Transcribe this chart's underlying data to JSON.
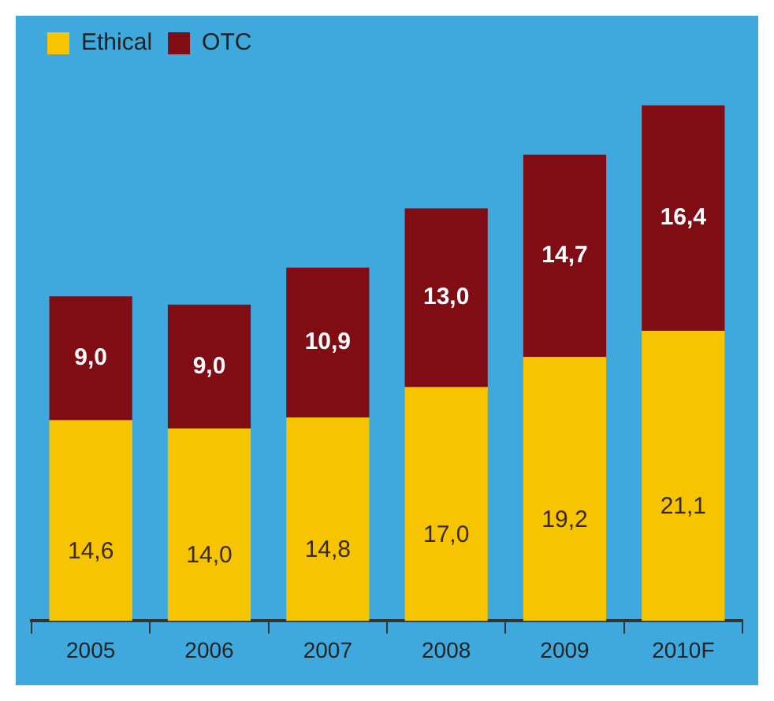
{
  "chart_data": {
    "type": "bar",
    "stacked": true,
    "legend": "top left",
    "categories": [
      "2005",
      "2006",
      "2007",
      "2008",
      "2009",
      "2010F"
    ],
    "series": [
      {
        "name": "Ethical",
        "color": "#f6c400",
        "values": [
          14.6,
          14.0,
          14.8,
          17.0,
          19.2,
          21.1
        ],
        "value_labels": [
          "14,6",
          "14,0",
          "14,8",
          "17,0",
          "19,2",
          "21,1"
        ]
      },
      {
        "name": "OTC",
        "color": "#800d14",
        "values": [
          9.0,
          9.0,
          10.9,
          13.0,
          14.7,
          16.4
        ],
        "value_labels": [
          "9,0",
          "9,0",
          "10,9",
          "13,0",
          "14,7",
          "16,4"
        ]
      }
    ]
  }
}
